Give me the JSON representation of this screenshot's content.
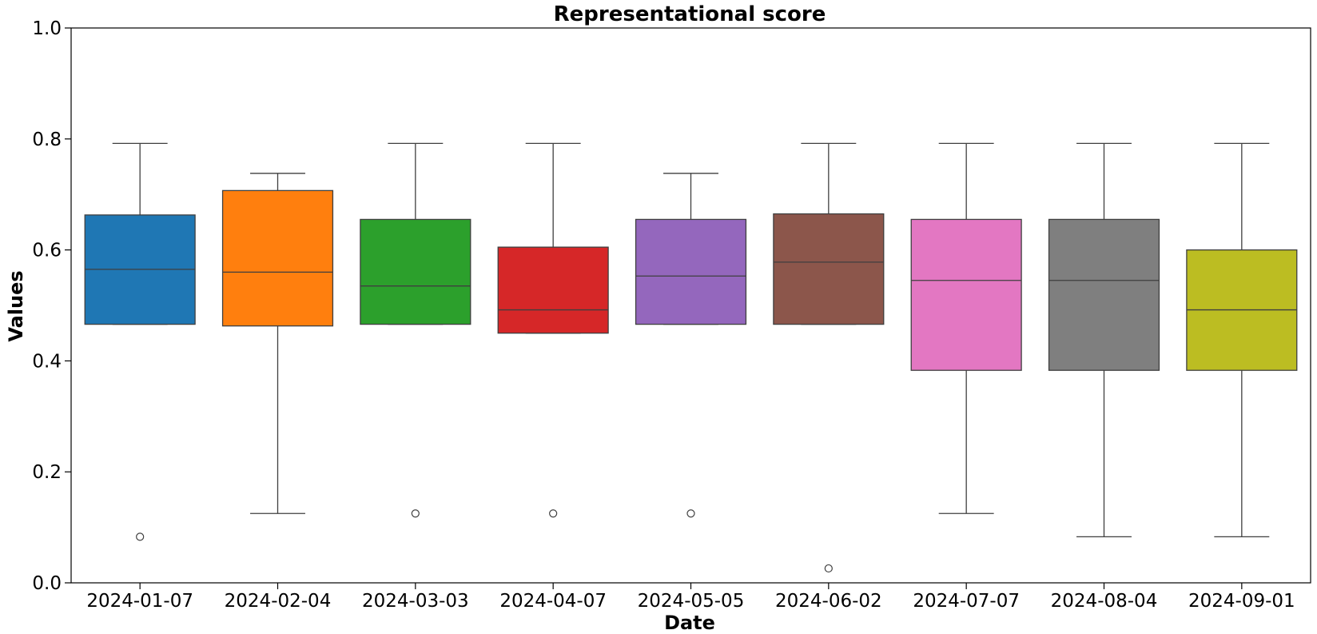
{
  "chart_data": {
    "type": "box",
    "title": "Representational score",
    "xlabel": "Date",
    "ylabel": "Values",
    "ylim": [
      0.0,
      1.0
    ],
    "yticks": [
      "0.0",
      "0.2",
      "0.4",
      "0.6",
      "0.8",
      "1.0"
    ],
    "grid": false,
    "legend": "none",
    "categories": [
      "2024-01-07",
      "2024-02-04",
      "2024-03-03",
      "2024-04-07",
      "2024-05-05",
      "2024-06-02",
      "2024-07-07",
      "2024-08-04",
      "2024-09-01"
    ],
    "boxes": [
      {
        "whisker_low": 0.466,
        "q1": 0.466,
        "median": 0.565,
        "q3": 0.663,
        "whisker_high": 0.792,
        "outliers": [
          0.083
        ],
        "color": "#1f77b4"
      },
      {
        "whisker_low": 0.125,
        "q1": 0.463,
        "median": 0.56,
        "q3": 0.707,
        "whisker_high": 0.738,
        "outliers": [],
        "color": "#ff7f0e"
      },
      {
        "whisker_low": 0.466,
        "q1": 0.466,
        "median": 0.535,
        "q3": 0.655,
        "whisker_high": 0.792,
        "outliers": [
          0.125
        ],
        "color": "#2ca02c"
      },
      {
        "whisker_low": 0.45,
        "q1": 0.45,
        "median": 0.492,
        "q3": 0.605,
        "whisker_high": 0.792,
        "outliers": [
          0.125
        ],
        "color": "#d62728"
      },
      {
        "whisker_low": 0.466,
        "q1": 0.466,
        "median": 0.553,
        "q3": 0.655,
        "whisker_high": 0.738,
        "outliers": [
          0.125
        ],
        "color": "#9467bd"
      },
      {
        "whisker_low": 0.466,
        "q1": 0.466,
        "median": 0.578,
        "q3": 0.665,
        "whisker_high": 0.792,
        "outliers": [
          0.026
        ],
        "color": "#8c564b"
      },
      {
        "whisker_low": 0.125,
        "q1": 0.383,
        "median": 0.545,
        "q3": 0.655,
        "whisker_high": 0.792,
        "outliers": [],
        "color": "#e377c2"
      },
      {
        "whisker_low": 0.083,
        "q1": 0.383,
        "median": 0.545,
        "q3": 0.655,
        "whisker_high": 0.792,
        "outliers": [],
        "color": "#7f7f7f"
      },
      {
        "whisker_low": 0.083,
        "q1": 0.383,
        "median": 0.492,
        "q3": 0.6,
        "whisker_high": 0.792,
        "outliers": [],
        "color": "#bcbd22"
      }
    ]
  }
}
